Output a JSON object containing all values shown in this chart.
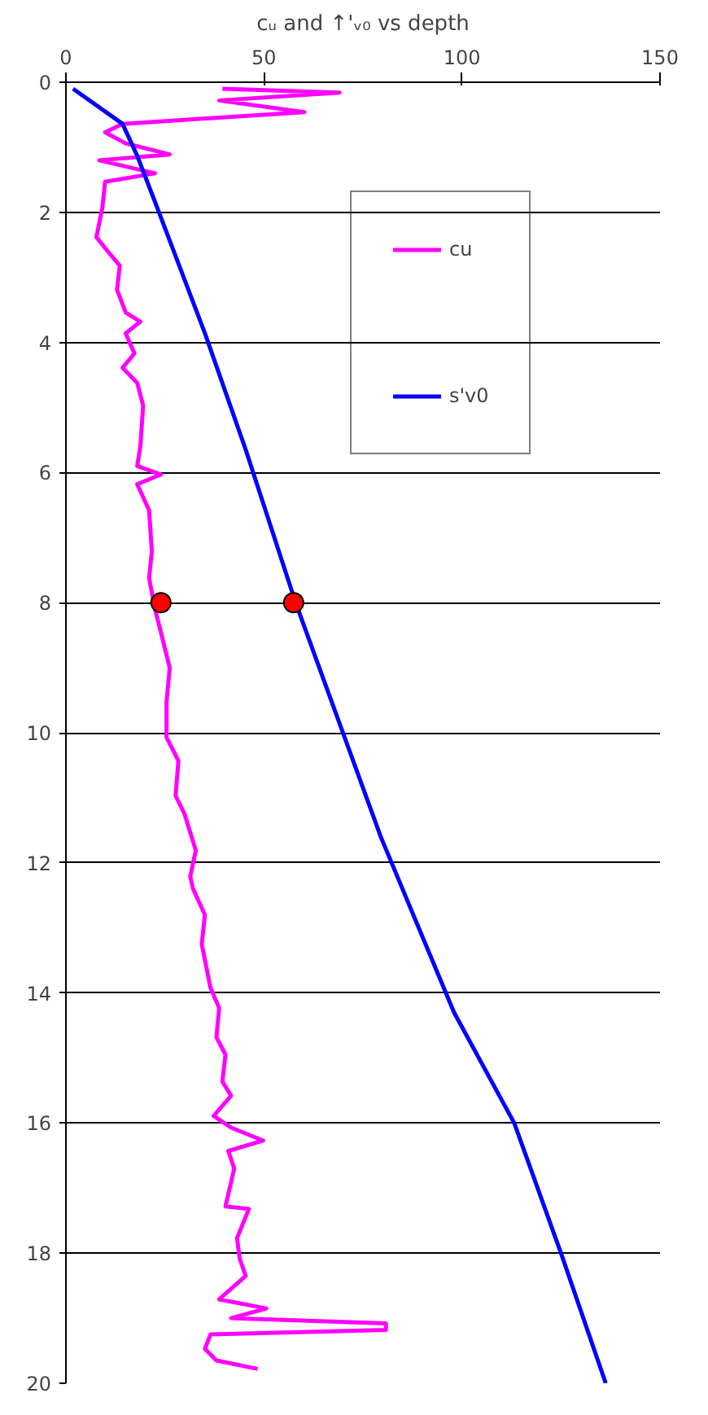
{
  "chart_data": {
    "type": "line",
    "title": "cᵤ and ↑'ᵥ₀ vs depth",
    "xlim": [
      0,
      150
    ],
    "xticks": [
      0,
      50,
      100,
      150
    ],
    "ylim": [
      20,
      0
    ],
    "yticks": [
      0,
      2,
      4,
      6,
      8,
      10,
      12,
      14,
      16,
      18,
      20
    ],
    "grid": "y",
    "legend": "top right",
    "marker": "none",
    "line_style": "solid",
    "series": [
      {
        "name": "cu",
        "color": "#ff00ff",
        "x": [
          39.5,
          69.1,
          38.7,
          60.2,
          14.3,
          9.9,
          15.1,
          26.2,
          8.4,
          22.5,
          9.9,
          9.2,
          7.7,
          9.9,
          13.6,
          12.9,
          15.1,
          18.8,
          15.1,
          17.3,
          14.3,
          18.0,
          19.5,
          18.8,
          18.0,
          24.0,
          18.0,
          21.0,
          21.7,
          21.0,
          22.5,
          24.0,
          26.2,
          25.4,
          25.4,
          28.4,
          27.7,
          29.9,
          32.8,
          31.4,
          32.1,
          35.1,
          34.3,
          36.5,
          38.7,
          38.0,
          40.3,
          39.5,
          41.7,
          37.3,
          41.7,
          49.8,
          41.0,
          42.5,
          40.3,
          46.2,
          43.2,
          43.9,
          45.4,
          38.7,
          50.6,
          41.7,
          80.8,
          80.8,
          36.5,
          35.1,
          38.0,
          48.4
        ],
        "values": [
          0.1,
          0.16,
          0.28,
          0.46,
          0.64,
          0.77,
          0.94,
          1.11,
          1.2,
          1.4,
          1.53,
          1.93,
          2.38,
          2.55,
          2.82,
          3.19,
          3.54,
          3.68,
          3.86,
          4.17,
          4.39,
          4.62,
          4.97,
          5.6,
          5.9,
          6.03,
          6.18,
          6.58,
          7.21,
          7.62,
          8.1,
          8.46,
          9.0,
          9.54,
          10.07,
          10.43,
          10.97,
          11.24,
          11.81,
          12.21,
          12.4,
          12.8,
          13.25,
          13.92,
          14.23,
          14.68,
          14.95,
          15.36,
          15.58,
          15.89,
          16.07,
          16.27,
          16.43,
          16.7,
          17.28,
          17.32,
          17.77,
          18.09,
          18.35,
          18.71,
          18.85,
          19.0,
          19.08,
          19.18,
          19.25,
          19.47,
          19.65,
          19.78
        ]
      },
      {
        "name": "s'v0",
        "color": "#0000ff",
        "x": [
          1.8,
          14.3,
          18.0,
          22.5,
          35.1,
          45.4,
          58.0,
          79.5,
          98.0,
          113.2,
          125.0,
          136.3
        ],
        "values": [
          0.1,
          0.64,
          1.13,
          1.84,
          3.86,
          5.65,
          8.0,
          11.6,
          14.3,
          16.0,
          18.0,
          20.0
        ]
      },
      {
        "color": "#ff0000",
        "type": "scatter",
        "marker": "circle",
        "x": [
          24.0,
          57.5
        ],
        "values": [
          8.0,
          8.0
        ]
      }
    ]
  }
}
